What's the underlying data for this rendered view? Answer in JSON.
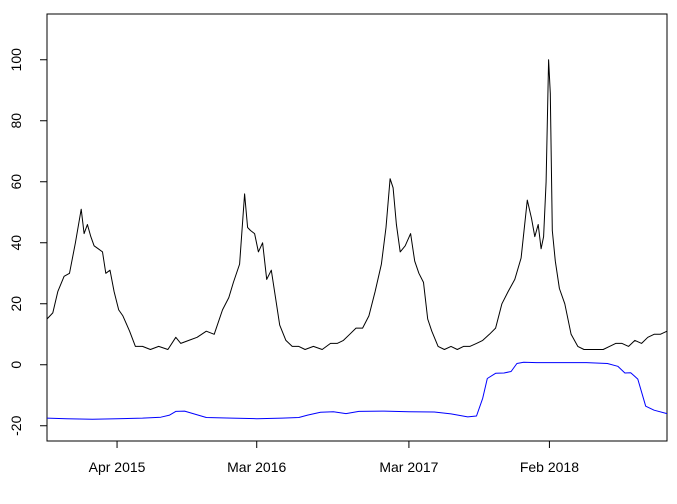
{
  "chart_data": {
    "type": "line",
    "title": "",
    "xlabel": "",
    "ylabel": "",
    "xlim": [
      "2014-10-15",
      "2018-11-10"
    ],
    "ylim": [
      -25,
      115
    ],
    "yticks": [
      -20,
      0,
      20,
      40,
      60,
      80,
      100
    ],
    "xticks": [
      {
        "date": "2015-04-01",
        "label": "Apr 2015"
      },
      {
        "date": "2016-03-01",
        "label": "Mar 2016"
      },
      {
        "date": "2017-03-01",
        "label": "Mar 2017"
      },
      {
        "date": "2018-02-01",
        "label": "Feb 2018"
      }
    ],
    "grid": false,
    "legend": "none",
    "series": [
      {
        "color": "#000000",
        "x": [
          "2014-10-15",
          "2014-10-29",
          "2014-11-10",
          "2014-11-25",
          "2014-12-08",
          "2014-12-22",
          "2015-01-05",
          "2015-01-12",
          "2015-01-20",
          "2015-01-28",
          "2015-02-05",
          "2015-02-15",
          "2015-02-25",
          "2015-03-05",
          "2015-03-15",
          "2015-03-25",
          "2015-04-05",
          "2015-04-15",
          "2015-05-01",
          "2015-05-15",
          "2015-06-01",
          "2015-06-20",
          "2015-07-10",
          "2015-08-01",
          "2015-08-20",
          "2015-09-01",
          "2015-09-20",
          "2015-10-10",
          "2015-11-01",
          "2015-11-20",
          "2015-12-10",
          "2015-12-25",
          "2016-01-05",
          "2016-01-20",
          "2016-02-01",
          "2016-02-08",
          "2016-02-15",
          "2016-02-25",
          "2016-03-05",
          "2016-03-15",
          "2016-03-25",
          "2016-04-05",
          "2016-04-15",
          "2016-04-25",
          "2016-05-10",
          "2016-05-25",
          "2016-06-10",
          "2016-06-25",
          "2016-07-15",
          "2016-08-05",
          "2016-08-25",
          "2016-09-10",
          "2016-09-25",
          "2016-10-10",
          "2016-10-25",
          "2016-11-10",
          "2016-11-25",
          "2016-12-10",
          "2016-12-25",
          "2017-01-05",
          "2017-01-15",
          "2017-01-22",
          "2017-01-30",
          "2017-02-08",
          "2017-02-20",
          "2017-03-05",
          "2017-03-15",
          "2017-03-25",
          "2017-04-05",
          "2017-04-15",
          "2017-04-25",
          "2017-05-10",
          "2017-05-25",
          "2017-06-10",
          "2017-06-25",
          "2017-07-10",
          "2017-07-25",
          "2017-08-10",
          "2017-08-25",
          "2017-09-10",
          "2017-09-25",
          "2017-10-10",
          "2017-10-25",
          "2017-11-10",
          "2017-11-25",
          "2017-12-10",
          "2017-12-20",
          "2017-12-28",
          "2018-01-05",
          "2018-01-12",
          "2018-01-18",
          "2018-01-24",
          "2018-01-30",
          "2018-02-03",
          "2018-02-08",
          "2018-02-15",
          "2018-02-25",
          "2018-03-10",
          "2018-03-25",
          "2018-04-10",
          "2018-04-25",
          "2018-05-10",
          "2018-05-25",
          "2018-06-10",
          "2018-06-25",
          "2018-07-10",
          "2018-07-25",
          "2018-08-10",
          "2018-08-25",
          "2018-09-10",
          "2018-09-25",
          "2018-10-10",
          "2018-10-25",
          "2018-11-10"
        ],
        "y": [
          15,
          17,
          24,
          29,
          30,
          40,
          51,
          43,
          46,
          42,
          39,
          38,
          37,
          30,
          31,
          24,
          18,
          16,
          11,
          6,
          6,
          5,
          6,
          5,
          9,
          7,
          8,
          9,
          11,
          10,
          18,
          22,
          27,
          33,
          56,
          45,
          44,
          43,
          37,
          40,
          28,
          31,
          22,
          13,
          8,
          6,
          6,
          5,
          6,
          5,
          7,
          7,
          8,
          10,
          12,
          12,
          16,
          24,
          33,
          45,
          61,
          58,
          46,
          37,
          39,
          43,
          34,
          30,
          27,
          15,
          11,
          6,
          5,
          6,
          5,
          6,
          6,
          7,
          8,
          10,
          12,
          20,
          24,
          28,
          35,
          54,
          48,
          42,
          46,
          38,
          42,
          60,
          100,
          89,
          44,
          34,
          25,
          20,
          10,
          6,
          5,
          5,
          5,
          5,
          6,
          7,
          7,
          6,
          8,
          7,
          9,
          10,
          10,
          11
        ]
      },
      {
        "color": "#0000ff",
        "x": [
          "2014-10-15",
          "2014-12-01",
          "2015-02-01",
          "2015-04-01",
          "2015-06-01",
          "2015-07-15",
          "2015-08-05",
          "2015-08-20",
          "2015-09-10",
          "2015-11-01",
          "2016-01-01",
          "2016-03-01",
          "2016-05-01",
          "2016-06-10",
          "2016-07-01",
          "2016-08-01",
          "2016-09-01",
          "2016-10-01",
          "2016-11-01",
          "2017-01-01",
          "2017-03-01",
          "2017-05-01",
          "2017-06-10",
          "2017-07-20",
          "2017-08-10",
          "2017-08-25",
          "2017-09-05",
          "2017-09-25",
          "2017-10-15",
          "2017-11-01",
          "2017-11-15",
          "2017-12-01",
          "2018-01-01",
          "2018-03-01",
          "2018-05-01",
          "2018-06-20",
          "2018-07-15",
          "2018-08-01",
          "2018-08-15",
          "2018-09-01",
          "2018-09-20",
          "2018-10-10",
          "2018-11-10"
        ],
        "y": [
          -17.5,
          -17.7,
          -17.9,
          -17.7,
          -17.5,
          -17.2,
          -16.5,
          -15.3,
          -15.2,
          -17.3,
          -17.5,
          -17.7,
          -17.5,
          -17.3,
          -16.5,
          -15.6,
          -15.4,
          -16.0,
          -15.3,
          -15.2,
          -15.4,
          -15.5,
          -16.1,
          -17.1,
          -16.8,
          -11.0,
          -4.5,
          -2.8,
          -2.7,
          -2.2,
          0.4,
          0.8,
          0.7,
          0.7,
          0.7,
          0.4,
          -0.5,
          -2.7,
          -2.6,
          -4.7,
          -13.6,
          -14.9,
          -16.0
        ]
      }
    ]
  }
}
